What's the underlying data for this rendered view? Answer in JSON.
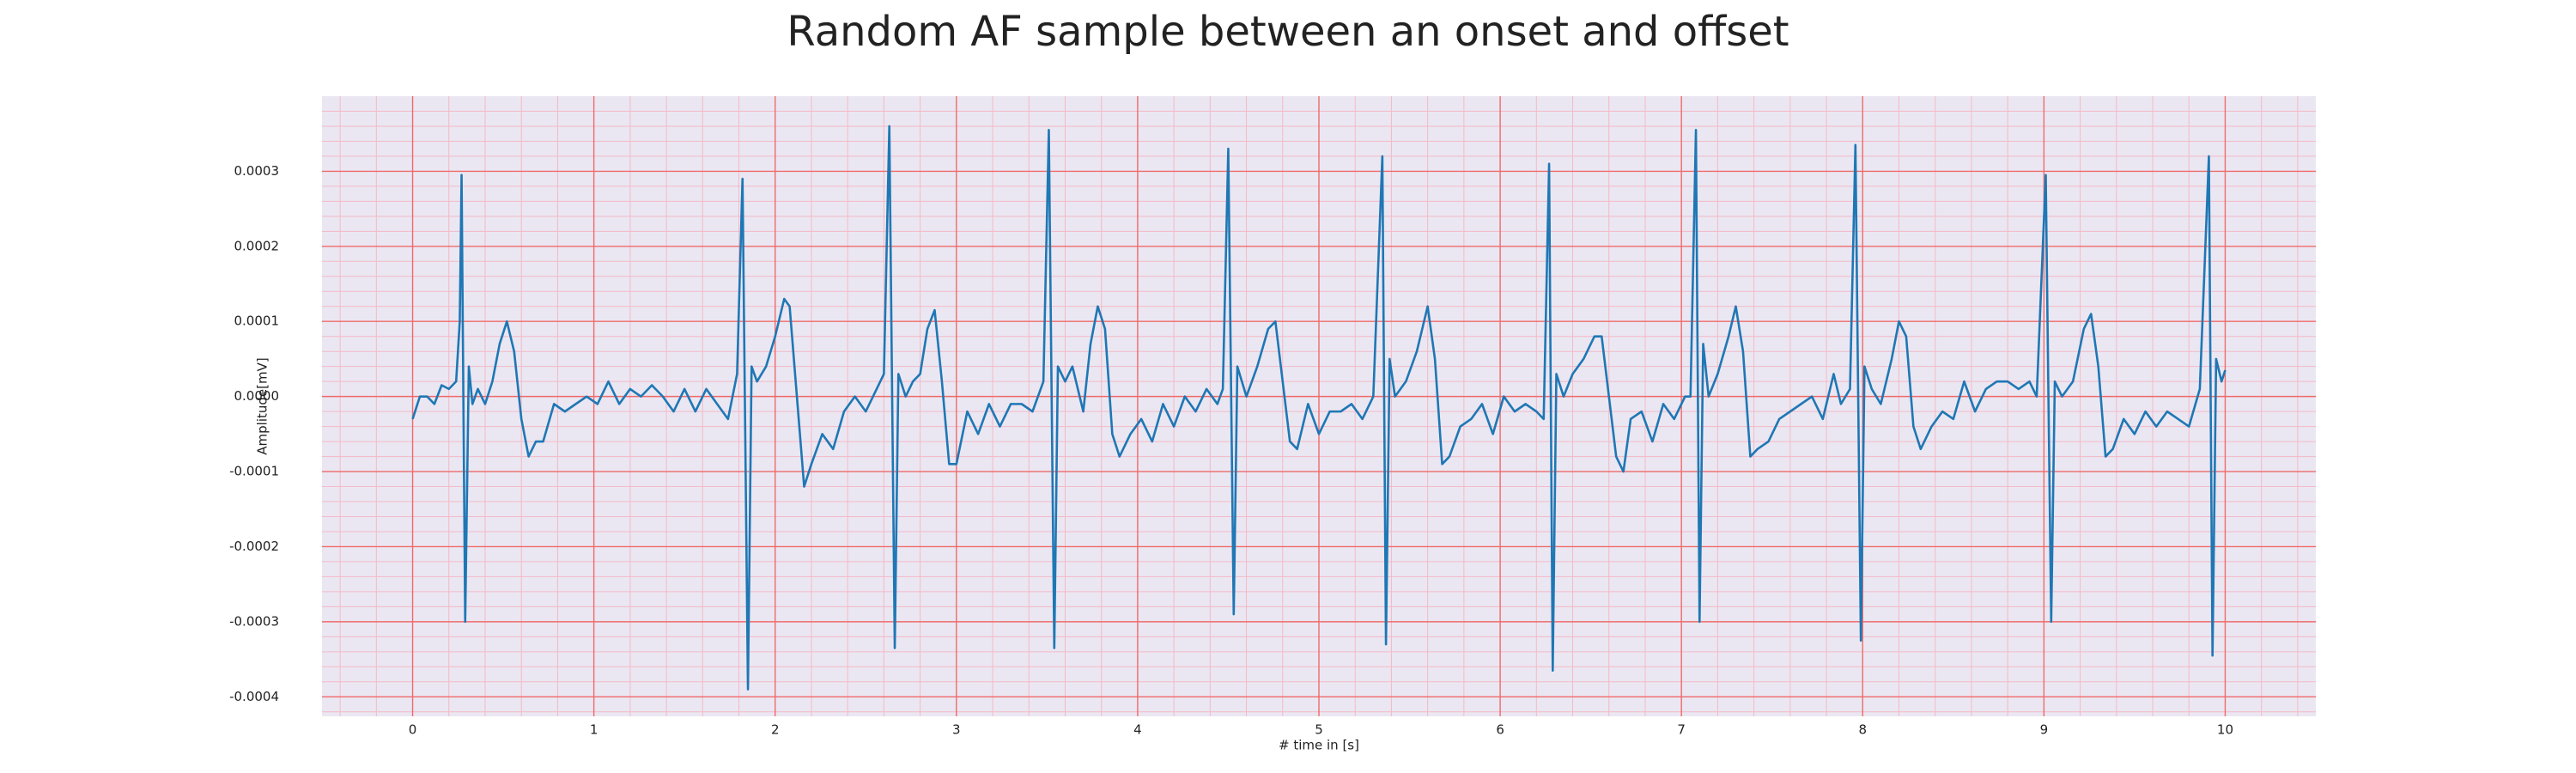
{
  "chart_data": {
    "type": "line",
    "title": "Random AF sample between an onset and offset",
    "x_label": "# time in [s]",
    "y_label": "Amplitude[mV]",
    "xlim": [
      -0.5,
      10.5
    ],
    "ylim": [
      -0.000426,
      0.0004
    ],
    "xticks": [
      0,
      1,
      2,
      3,
      4,
      5,
      6,
      7,
      8,
      9,
      10
    ],
    "yticks": [
      -0.0004,
      -0.0003,
      -0.0002,
      -0.0001,
      {
        "value": 0,
        "label": "0.0000"
      },
      0.0001,
      0.0002,
      0.0003
    ],
    "grid": true,
    "minor_grid": true,
    "series": [
      {
        "color": "#1f77b4",
        "x": [
          0,
          0.04,
          0.08,
          0.12,
          0.16,
          0.2,
          0.24,
          0.26,
          0.27,
          0.29,
          0.31,
          0.33,
          0.36,
          0.4,
          0.44,
          0.48,
          0.52,
          0.56,
          0.6,
          0.64,
          0.68,
          0.72,
          0.78,
          0.84,
          0.9,
          0.96,
          1.02,
          1.08,
          1.14,
          1.2,
          1.26,
          1.32,
          1.38,
          1.44,
          1.5,
          1.56,
          1.62,
          1.68,
          1.74,
          1.79,
          1.82,
          1.85,
          1.87,
          1.9,
          1.95,
          2,
          2.05,
          2.08,
          2.12,
          2.16,
          2.2,
          2.26,
          2.32,
          2.38,
          2.44,
          2.5,
          2.56,
          2.6,
          2.63,
          2.66,
          2.68,
          2.72,
          2.76,
          2.8,
          2.84,
          2.88,
          2.92,
          2.96,
          3,
          3.06,
          3.12,
          3.18,
          3.24,
          3.3,
          3.36,
          3.42,
          3.48,
          3.51,
          3.54,
          3.56,
          3.6,
          3.64,
          3.7,
          3.74,
          3.78,
          3.82,
          3.86,
          3.9,
          3.96,
          4.02,
          4.08,
          4.14,
          4.2,
          4.26,
          4.32,
          4.38,
          4.44,
          4.47,
          4.5,
          4.53,
          4.55,
          4.6,
          4.66,
          4.72,
          4.76,
          4.8,
          4.84,
          4.88,
          4.94,
          5,
          5.06,
          5.12,
          5.18,
          5.24,
          5.3,
          5.35,
          5.37,
          5.39,
          5.42,
          5.48,
          5.54,
          5.6,
          5.64,
          5.68,
          5.72,
          5.78,
          5.84,
          5.9,
          5.96,
          6.02,
          6.08,
          6.14,
          6.2,
          6.24,
          6.27,
          6.29,
          6.31,
          6.35,
          6.4,
          6.46,
          6.52,
          6.56,
          6.6,
          6.64,
          6.68,
          6.72,
          6.78,
          6.84,
          6.9,
          6.96,
          7.02,
          7.05,
          7.08,
          7.1,
          7.12,
          7.15,
          7.2,
          7.26,
          7.3,
          7.34,
          7.38,
          7.42,
          7.48,
          7.54,
          7.6,
          7.66,
          7.72,
          7.78,
          7.84,
          7.88,
          7.93,
          7.96,
          7.99,
          8.01,
          8.05,
          8.1,
          8.16,
          8.2,
          8.24,
          8.28,
          8.32,
          8.38,
          8.44,
          8.5,
          8.56,
          8.62,
          8.68,
          8.74,
          8.8,
          8.86,
          8.92,
          8.96,
          9.01,
          9.04,
          9.06,
          9.1,
          9.16,
          9.22,
          9.26,
          9.3,
          9.34,
          9.38,
          9.44,
          9.5,
          9.56,
          9.62,
          9.68,
          9.74,
          9.8,
          9.86,
          9.91,
          9.93,
          9.95,
          9.98,
          10
        ],
        "values": [
          -3e-05,
          0,
          0,
          -1e-05,
          1.5e-05,
          1e-05,
          2e-05,
          0.0001,
          0.000295,
          -0.0003,
          4e-05,
          -1e-05,
          1e-05,
          -1e-05,
          2e-05,
          7e-05,
          0.0001,
          6e-05,
          -3e-05,
          -8e-05,
          -6e-05,
          -6e-05,
          -1e-05,
          -2e-05,
          -1e-05,
          0,
          -1e-05,
          2e-05,
          -1e-05,
          1e-05,
          0,
          1.5e-05,
          0,
          -2e-05,
          1e-05,
          -2e-05,
          1e-05,
          -1e-05,
          -3e-05,
          3e-05,
          0.00029,
          -0.00039,
          4e-05,
          2e-05,
          4e-05,
          8e-05,
          0.00013,
          0.00012,
          0,
          -0.00012,
          -9e-05,
          -5e-05,
          -7e-05,
          -2e-05,
          0,
          -2e-05,
          1e-05,
          3e-05,
          0.00036,
          -0.000335,
          3e-05,
          0,
          2e-05,
          3e-05,
          9e-05,
          0.000115,
          2e-05,
          -9e-05,
          -9e-05,
          -2e-05,
          -5e-05,
          -1e-05,
          -4e-05,
          -1e-05,
          -1e-05,
          -2e-05,
          2e-05,
          0.000355,
          -0.000335,
          4e-05,
          2e-05,
          4e-05,
          -2e-05,
          7e-05,
          0.00012,
          9e-05,
          -5e-05,
          -8e-05,
          -5e-05,
          -3e-05,
          -6e-05,
          -1e-05,
          -4e-05,
          0,
          -2e-05,
          1e-05,
          -1e-05,
          1e-05,
          0.00033,
          -0.00029,
          4e-05,
          0,
          4e-05,
          9e-05,
          0.0001,
          2e-05,
          -6e-05,
          -7e-05,
          -1e-05,
          -5e-05,
          -2e-05,
          -2e-05,
          -1e-05,
          -3e-05,
          0,
          0.00032,
          -0.00033,
          5e-05,
          0,
          2e-05,
          6e-05,
          0.00012,
          5e-05,
          -9e-05,
          -8e-05,
          -4e-05,
          -3e-05,
          -1e-05,
          -5e-05,
          0,
          -2e-05,
          -1e-05,
          -2e-05,
          -3e-05,
          0.00031,
          -0.000365,
          3e-05,
          0,
          3e-05,
          5e-05,
          8e-05,
          8e-05,
          0,
          -8e-05,
          -0.0001,
          -3e-05,
          -2e-05,
          -6e-05,
          -1e-05,
          -3e-05,
          0,
          0,
          0.000355,
          -0.0003,
          7e-05,
          0,
          3e-05,
          8e-05,
          0.00012,
          6e-05,
          -8e-05,
          -7e-05,
          -6e-05,
          -3e-05,
          -2e-05,
          -1e-05,
          0,
          -3e-05,
          3e-05,
          -1e-05,
          1e-05,
          0.000335,
          -0.000325,
          4e-05,
          1e-05,
          -1e-05,
          5e-05,
          0.0001,
          8e-05,
          -4e-05,
          -7e-05,
          -4e-05,
          -2e-05,
          -3e-05,
          2e-05,
          -2e-05,
          1e-05,
          2e-05,
          2e-05,
          1e-05,
          2e-05,
          0,
          0.000295,
          -0.0003,
          2e-05,
          0,
          2e-05,
          9e-05,
          0.00011,
          4e-05,
          -8e-05,
          -7e-05,
          -3e-05,
          -5e-05,
          -2e-05,
          -4e-05,
          -2e-05,
          -3e-05,
          -4e-05,
          1e-05,
          0.00032,
          -0.000345,
          5e-05,
          2e-05,
          3.5e-05
        ]
      }
    ]
  }
}
